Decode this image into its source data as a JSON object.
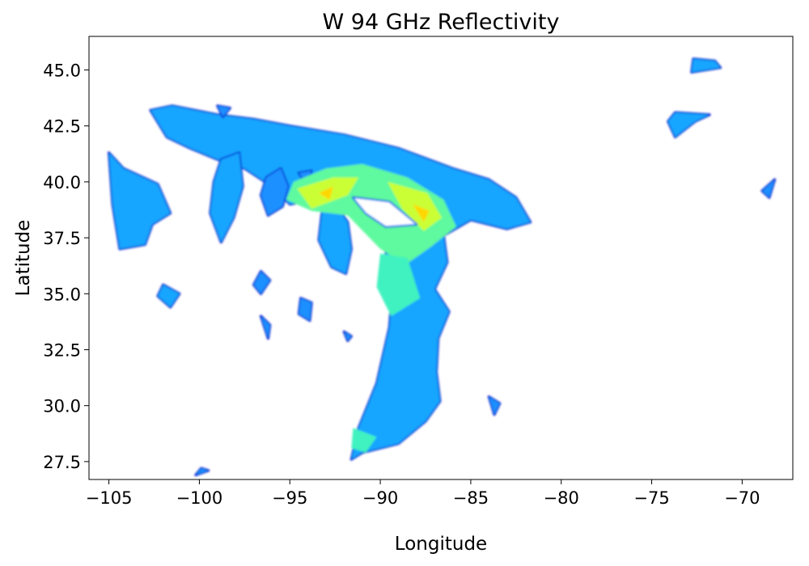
{
  "chart_data": {
    "type": "heatmap",
    "title": "W 94 GHz Reflectivity",
    "xlabel": "Longitude",
    "ylabel": "Latitude",
    "xlim": [
      -106.1,
      -67.2
    ],
    "ylim": [
      26.7,
      46.5
    ],
    "xticks": [
      -105,
      -100,
      -95,
      -90,
      -85,
      -80,
      -75,
      -70
    ],
    "xtick_labels": [
      "−105",
      "−100",
      "−95",
      "−90",
      "−85",
      "−80",
      "−75",
      "−70"
    ],
    "yticks": [
      27.5,
      30.0,
      32.5,
      35.0,
      37.5,
      40.0,
      42.5,
      45.0
    ],
    "ytick_labels": [
      "27.5",
      "30.0",
      "32.5",
      "35.0",
      "37.5",
      "40.0",
      "42.5",
      "45.0"
    ],
    "colormap": "jet",
    "colors": {
      "low": "#0000cd",
      "mid": "#1e90ff",
      "cyan": "#00e5ff",
      "green": "#7fff7f",
      "yellow": "#ffff00",
      "orange": "#ffa500"
    },
    "grid": false,
    "regions": [
      {
        "level": 0.3,
        "points": [
          [
            -102.7,
            43.2
          ],
          [
            -101.5,
            43.4
          ],
          [
            -99,
            43.0
          ],
          [
            -97,
            42.8
          ],
          [
            -95,
            42.5
          ],
          [
            -92,
            42.1
          ],
          [
            -89,
            41.5
          ],
          [
            -86,
            40.6
          ],
          [
            -84,
            40.1
          ],
          [
            -82.5,
            39.3
          ],
          [
            -81.7,
            38.2
          ],
          [
            -83,
            37.9
          ],
          [
            -85,
            38.3
          ],
          [
            -86.5,
            37.6
          ],
          [
            -86.3,
            36.4
          ],
          [
            -87,
            35.2
          ],
          [
            -86.2,
            34.2
          ],
          [
            -86.8,
            33.0
          ],
          [
            -86.9,
            31.5
          ],
          [
            -86.7,
            30.2
          ],
          [
            -87.5,
            29.3
          ],
          [
            -89,
            28.3
          ],
          [
            -91,
            27.9
          ],
          [
            -91.6,
            27.6
          ],
          [
            -91.2,
            29.0
          ],
          [
            -90.2,
            31.0
          ],
          [
            -89.5,
            33.5
          ],
          [
            -89.3,
            35.5
          ],
          [
            -89.8,
            37.2
          ],
          [
            -91,
            38.6
          ],
          [
            -93,
            39.3
          ],
          [
            -95,
            39.0
          ],
          [
            -96,
            39.8
          ],
          [
            -97.5,
            40.6
          ],
          [
            -99,
            41.0
          ],
          [
            -100.5,
            41.5
          ],
          [
            -101.8,
            42.0
          ]
        ]
      },
      {
        "level": 0.25,
        "points": [
          [
            -96.3,
            40.2
          ],
          [
            -95.5,
            40.6
          ],
          [
            -95.1,
            39.8
          ],
          [
            -95.4,
            38.9
          ],
          [
            -96.2,
            38.5
          ],
          [
            -96.6,
            39.4
          ]
        ]
      },
      {
        "level": 0.3,
        "points": [
          [
            -98.8,
            41.0
          ],
          [
            -97.8,
            41.3
          ],
          [
            -97.6,
            39.8
          ],
          [
            -98.1,
            38.4
          ],
          [
            -98.8,
            37.3
          ],
          [
            -99.4,
            38.6
          ],
          [
            -99.2,
            40.0
          ]
        ]
      },
      {
        "level": 0.3,
        "points": [
          [
            -105.0,
            41.3
          ],
          [
            -104.2,
            40.6
          ],
          [
            -102.3,
            39.9
          ],
          [
            -101.6,
            38.6
          ],
          [
            -102.6,
            38.1
          ],
          [
            -103.0,
            37.2
          ],
          [
            -104.4,
            37.0
          ],
          [
            -104.8,
            39.0
          ]
        ]
      },
      {
        "level": 0.3,
        "points": [
          [
            -93.2,
            38.8
          ],
          [
            -92.5,
            39.0
          ],
          [
            -91.8,
            38.2
          ],
          [
            -91.6,
            37.0
          ],
          [
            -91.9,
            35.9
          ],
          [
            -92.7,
            36.2
          ],
          [
            -93.4,
            37.4
          ]
        ]
      },
      {
        "level": 0.3,
        "points": [
          [
            -102.0,
            35.4
          ],
          [
            -101.1,
            35.0
          ],
          [
            -101.6,
            34.4
          ],
          [
            -102.3,
            34.9
          ]
        ]
      },
      {
        "level": 0.3,
        "points": [
          [
            -72.7,
            45.5
          ],
          [
            -71.5,
            45.4
          ],
          [
            -71.2,
            45.1
          ],
          [
            -72.8,
            44.9
          ]
        ]
      },
      {
        "level": 0.3,
        "points": [
          [
            -73.7,
            43.1
          ],
          [
            -71.8,
            43.0
          ],
          [
            -72.6,
            42.7
          ],
          [
            -73.7,
            42.0
          ],
          [
            -74.1,
            42.7
          ]
        ]
      },
      {
        "level": 0.25,
        "points": [
          [
            -68.2,
            40.1
          ],
          [
            -68.5,
            39.3
          ],
          [
            -68.9,
            39.6
          ]
        ]
      },
      {
        "level": 0.25,
        "points": [
          [
            -100.2,
            26.9
          ],
          [
            -99.5,
            27.1
          ],
          [
            -99.9,
            27.2
          ]
        ]
      },
      {
        "level": 0.25,
        "points": [
          [
            -96.6,
            36.0
          ],
          [
            -96.1,
            35.6
          ],
          [
            -96.6,
            35.0
          ],
          [
            -97.0,
            35.4
          ]
        ]
      },
      {
        "level": 0.25,
        "points": [
          [
            -94.4,
            34.8
          ],
          [
            -93.8,
            34.6
          ],
          [
            -93.9,
            33.8
          ],
          [
            -94.5,
            34.1
          ]
        ]
      },
      {
        "level": 0.25,
        "points": [
          [
            -99.0,
            43.4
          ],
          [
            -98.3,
            43.3
          ],
          [
            -98.7,
            42.9
          ]
        ]
      },
      {
        "level": 0.25,
        "points": [
          [
            -92.0,
            33.3
          ],
          [
            -91.6,
            33.1
          ],
          [
            -91.8,
            32.9
          ]
        ]
      },
      {
        "level": 0.25,
        "points": [
          [
            -84.0,
            30.4
          ],
          [
            -83.4,
            30.1
          ],
          [
            -83.7,
            29.6
          ]
        ]
      },
      {
        "level": 0.25,
        "points": [
          [
            -94.5,
            40.4
          ],
          [
            -93.8,
            40.5
          ],
          [
            -94.1,
            39.9
          ]
        ]
      },
      {
        "level": 0.25,
        "points": [
          [
            -96.6,
            34.0
          ],
          [
            -96.1,
            33.6
          ],
          [
            -96.2,
            33.0
          ]
        ]
      },
      {
        "level": 0.6,
        "points": [
          [
            -94.8,
            40.0
          ],
          [
            -93.0,
            40.6
          ],
          [
            -91.0,
            40.8
          ],
          [
            -88.5,
            40.2
          ],
          [
            -86.5,
            39.2
          ],
          [
            -85.8,
            38.0
          ],
          [
            -87.2,
            37.1
          ],
          [
            -88.6,
            36.3
          ],
          [
            -90.0,
            37.0
          ],
          [
            -91.8,
            38.5
          ],
          [
            -93.8,
            38.7
          ],
          [
            -95.2,
            39.2
          ]
        ]
      },
      {
        "level": 0.55,
        "points": [
          [
            -90.0,
            36.8
          ],
          [
            -88.5,
            36.6
          ],
          [
            -87.8,
            34.8
          ],
          [
            -89.4,
            34.0
          ],
          [
            -90.2,
            35.3
          ]
        ]
      },
      {
        "level": 0.55,
        "points": [
          [
            -91.5,
            29.0
          ],
          [
            -90.2,
            28.6
          ],
          [
            -90.8,
            27.9
          ],
          [
            -91.6,
            28.1
          ]
        ]
      },
      {
        "level": 0.75,
        "points": [
          [
            -94.6,
            39.7
          ],
          [
            -92.6,
            40.2
          ],
          [
            -91.2,
            40.2
          ],
          [
            -91.8,
            39.4
          ],
          [
            -93.8,
            38.8
          ]
        ]
      },
      {
        "level": 0.75,
        "points": [
          [
            -89.6,
            40.0
          ],
          [
            -87.4,
            39.5
          ],
          [
            -86.6,
            38.4
          ],
          [
            -87.6,
            37.8
          ],
          [
            -88.8,
            38.8
          ]
        ]
      },
      {
        "level": 0.9,
        "points": [
          [
            -93.4,
            39.5
          ],
          [
            -92.6,
            39.8
          ],
          [
            -92.8,
            39.2
          ]
        ]
      },
      {
        "level": 0.9,
        "points": [
          [
            -88.2,
            39.0
          ],
          [
            -87.3,
            38.7
          ],
          [
            -87.6,
            38.2
          ]
        ]
      },
      {
        "level": 0.05,
        "points": [
          [
            -91.5,
            39.3
          ],
          [
            -89.5,
            39.1
          ],
          [
            -88.0,
            38.1
          ],
          [
            -89.7,
            38.0
          ],
          [
            -90.8,
            38.6
          ]
        ]
      }
    ]
  }
}
